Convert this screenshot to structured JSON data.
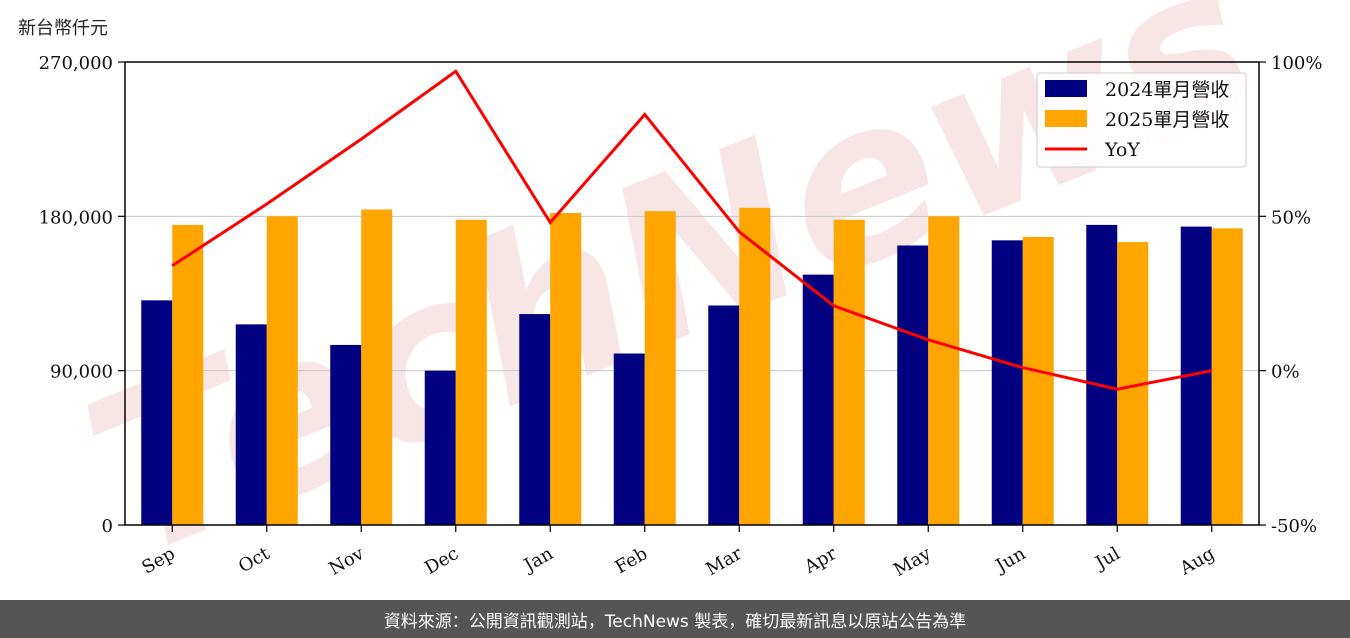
{
  "unit_label": "新台幣仟元",
  "footer_text": "資料來源：公開資訊觀測站，TechNews 製表，確切最新訊息以原站公告為準",
  "watermark": "TechNews",
  "colors": {
    "bar_2024": "#000080",
    "bar_2025": "#ffa500",
    "yoy_line": "#ff0000",
    "grid": "#c8c8c8",
    "footer_bg": "#555555"
  },
  "chart_data": {
    "type": "bar",
    "categories": [
      "Sep",
      "Oct",
      "Nov",
      "Dec",
      "Jan",
      "Feb",
      "Mar",
      "Apr",
      "May",
      "Jun",
      "Jul",
      "Aug"
    ],
    "series": [
      {
        "name": "2024單月營收",
        "values": [
          131000,
          117000,
          105000,
          90000,
          123000,
          100000,
          128000,
          146000,
          163000,
          166000,
          175000,
          174000
        ]
      },
      {
        "name": "2025單月營收",
        "values": [
          175000,
          180000,
          184000,
          178000,
          182000,
          183000,
          185000,
          178000,
          180000,
          168000,
          165000,
          173000
        ]
      }
    ],
    "line_series": {
      "name": "YoY",
      "values": [
        34,
        54,
        75,
        97,
        48,
        83,
        45,
        21,
        10,
        1,
        -6,
        0
      ]
    },
    "ylim": [
      0,
      270000
    ],
    "y_ticks": [
      0,
      90000,
      180000,
      270000
    ],
    "y_tick_labels": [
      "0",
      "90,000",
      "180,000",
      "270,000"
    ],
    "y2lim": [
      -50,
      100
    ],
    "y2_ticks": [
      -50,
      0,
      50,
      100
    ],
    "y2_tick_labels": [
      "-50%",
      "0%",
      "50%",
      "100%"
    ],
    "grid": true,
    "legend_position": "top-right"
  }
}
